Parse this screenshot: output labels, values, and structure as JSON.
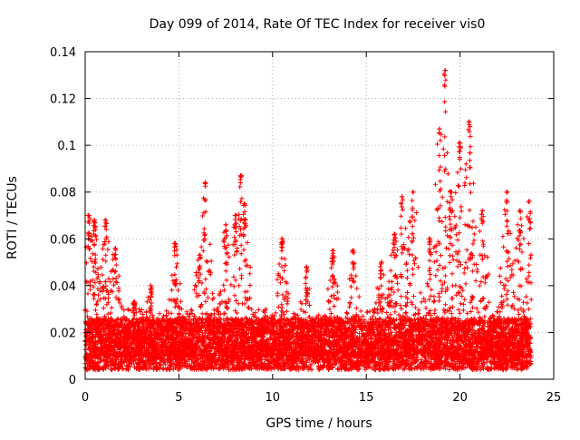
{
  "chart_data": {
    "type": "scatter",
    "title": "Day 099 of 2014, Rate Of TEC Index for receiver vis0",
    "xlabel": "GPS time / hours",
    "ylabel": "ROTI / TECUs",
    "xlim": [
      0,
      25
    ],
    "ylim": [
      0,
      0.14
    ],
    "x_ticks": [
      0,
      5,
      10,
      15,
      20,
      25
    ],
    "y_ticks": [
      0,
      0.02,
      0.04,
      0.06,
      0.08,
      0.1,
      0.12,
      0.14
    ],
    "x_tick_labels": [
      "0",
      "5",
      "10",
      "15",
      "20",
      "25"
    ],
    "y_tick_labels": [
      "0",
      "0.02",
      "0.04",
      "0.06",
      "0.08",
      "0.1",
      "0.12",
      "0.14"
    ],
    "grid": true,
    "marker": "+",
    "marker_color": "#ff0000",
    "data_x_range": [
      0,
      23.8
    ],
    "series": [
      {
        "name": "ROTI",
        "note": "dense point cloud, approx. 0.003-0.03 baseline with spikes",
        "peaks": [
          {
            "x": 0.2,
            "y": 0.07
          },
          {
            "x": 0.5,
            "y": 0.068
          },
          {
            "x": 1.1,
            "y": 0.068
          },
          {
            "x": 1.6,
            "y": 0.056
          },
          {
            "x": 2.6,
            "y": 0.033
          },
          {
            "x": 3.5,
            "y": 0.04
          },
          {
            "x": 4.8,
            "y": 0.058
          },
          {
            "x": 6.1,
            "y": 0.053
          },
          {
            "x": 6.4,
            "y": 0.084
          },
          {
            "x": 7.5,
            "y": 0.066
          },
          {
            "x": 8.0,
            "y": 0.07
          },
          {
            "x": 8.3,
            "y": 0.087
          },
          {
            "x": 8.5,
            "y": 0.075
          },
          {
            "x": 10.5,
            "y": 0.06
          },
          {
            "x": 11.8,
            "y": 0.048
          },
          {
            "x": 13.2,
            "y": 0.055
          },
          {
            "x": 14.3,
            "y": 0.055
          },
          {
            "x": 15.8,
            "y": 0.05
          },
          {
            "x": 16.5,
            "y": 0.062
          },
          {
            "x": 16.9,
            "y": 0.078
          },
          {
            "x": 17.5,
            "y": 0.08
          },
          {
            "x": 18.4,
            "y": 0.06
          },
          {
            "x": 18.9,
            "y": 0.107
          },
          {
            "x": 19.2,
            "y": 0.132
          },
          {
            "x": 19.5,
            "y": 0.08
          },
          {
            "x": 20.0,
            "y": 0.101
          },
          {
            "x": 20.5,
            "y": 0.11
          },
          {
            "x": 21.2,
            "y": 0.072
          },
          {
            "x": 22.5,
            "y": 0.08
          },
          {
            "x": 23.2,
            "y": 0.072
          },
          {
            "x": 23.7,
            "y": 0.076
          }
        ]
      }
    ]
  }
}
